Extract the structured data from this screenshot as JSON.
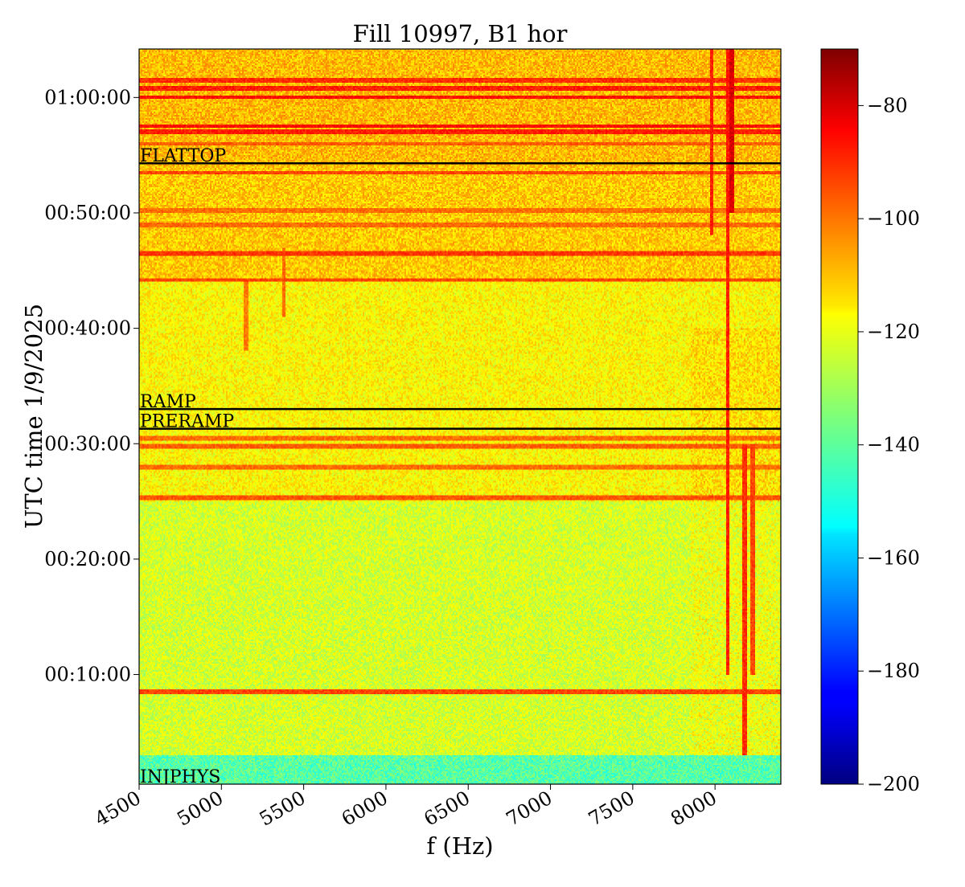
{
  "chart_data": {
    "type": "heatmap",
    "title": "Fill 10997, B1 hor",
    "xlabel": "f (Hz)",
    "ylabel": "UTC time 1/9/2025",
    "xlim": [
      4500,
      8400
    ],
    "x_ticks": [
      4500,
      5000,
      5500,
      6000,
      6500,
      7000,
      7500,
      8000
    ],
    "x_tick_labels": [
      "4500",
      "5000",
      "5500",
      "6000",
      "6500",
      "7000",
      "7500",
      "8000"
    ],
    "ylim_minutes": [
      0.5,
      64.2
    ],
    "y_ticks_minutes": [
      10,
      20,
      30,
      40,
      50,
      60
    ],
    "y_tick_labels": [
      "00:10:00",
      "00:20:00",
      "00:30:00",
      "00:40:00",
      "00:50:00",
      "01:00:00"
    ],
    "colormap": "jet",
    "colorbar": {
      "range": [
        -200,
        -70
      ],
      "ticks": [
        -200,
        -180,
        -160,
        -140,
        -120,
        -100,
        -80
      ],
      "tick_labels": [
        "−200",
        "−180",
        "−160",
        "−140",
        "−120",
        "−100",
        "−80"
      ]
    },
    "phase_markers": [
      {
        "label": "FLATTOP",
        "minutes": 54.3
      },
      {
        "label": "RAMP",
        "minutes": 33.0
      },
      {
        "label": "PRERAMP",
        "minutes": 31.3
      },
      {
        "label": "INJPHYS",
        "minutes": 0.5
      }
    ],
    "background_levels": [
      {
        "from_min": 0.5,
        "to_min": 3.0,
        "db": -140
      },
      {
        "from_min": 3.0,
        "to_min": 25.0,
        "db": -124
      },
      {
        "from_min": 25.0,
        "to_min": 44.0,
        "db": -118
      },
      {
        "from_min": 44.0,
        "to_min": 54.0,
        "db": -112
      },
      {
        "from_min": 54.0,
        "to_min": 64.2,
        "db": -110
      }
    ],
    "horizontal_lines": [
      {
        "minutes": 8.5,
        "db": -95
      },
      {
        "minutes": 25.3,
        "db": -97
      },
      {
        "minutes": 28.0,
        "db": -100
      },
      {
        "minutes": 29.8,
        "db": -98
      },
      {
        "minutes": 30.5,
        "db": -100
      },
      {
        "minutes": 44.2,
        "db": -95
      },
      {
        "minutes": 46.5,
        "db": -93
      },
      {
        "minutes": 49.0,
        "db": -100
      },
      {
        "minutes": 50.2,
        "db": -100
      },
      {
        "minutes": 53.5,
        "db": -95
      },
      {
        "minutes": 56.0,
        "db": -98
      },
      {
        "minutes": 57.0,
        "db": -90
      },
      {
        "minutes": 57.5,
        "db": -88
      },
      {
        "minutes": 60.0,
        "db": -88
      },
      {
        "minutes": 60.8,
        "db": -90
      },
      {
        "minutes": 61.5,
        "db": -92
      }
    ],
    "vertical_features": [
      {
        "freq": 7980,
        "from_min": 48.0,
        "to_min": 64.2,
        "db": -90
      },
      {
        "freq": 8080,
        "from_min": 10.0,
        "to_min": 64.2,
        "db": -90
      },
      {
        "freq": 8100,
        "from_min": 50.0,
        "to_min": 64.2,
        "db": -82
      },
      {
        "freq": 8180,
        "from_min": 3.0,
        "to_min": 30.0,
        "db": -92
      },
      {
        "freq": 8230,
        "from_min": 10.0,
        "to_min": 30.0,
        "db": -95
      },
      {
        "freq": 5380,
        "from_min": 41.0,
        "to_min": 47.0,
        "db": -100
      },
      {
        "freq": 5150,
        "from_min": 38.0,
        "to_min": 44.0,
        "db": -102
      }
    ]
  }
}
